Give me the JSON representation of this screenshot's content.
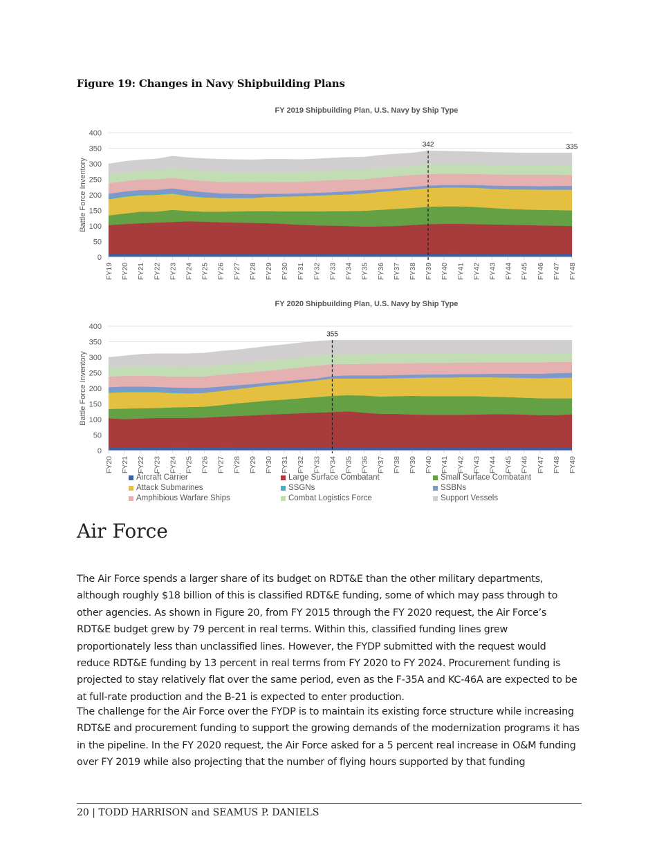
{
  "figure_title": "Figure 19: Changes in Navy Shipbuilding Plans",
  "legend": [
    {
      "name": "Aircraft Carrier",
      "color": "#3f5fa0"
    },
    {
      "name": "Large Surface Combatant",
      "color": "#a83b3b"
    },
    {
      "name": "Small Surface Combatant",
      "color": "#64a044"
    },
    {
      "name": "Attack Submarines",
      "color": "#e5c040"
    },
    {
      "name": "SSGNs",
      "color": "#4bacc6"
    },
    {
      "name": "SSBNs",
      "color": "#7f98cc"
    },
    {
      "name": "Amphibious Warfare Ships",
      "color": "#e4b0b0"
    },
    {
      "name": "Combat Logistics Force",
      "color": "#c2ddb4"
    },
    {
      "name": "Support Vessels",
      "color": "#d0cece"
    }
  ],
  "chart_data": [
    {
      "type": "area",
      "stacked": true,
      "title": "FY 2019 Shipbuilding Plan, U.S. Navy by Ship Type",
      "ylabel": "Battle Force Inventory",
      "ylim": [
        0,
        400
      ],
      "yticks": [
        0,
        50,
        100,
        150,
        200,
        250,
        300,
        350,
        400
      ],
      "grid": true,
      "categories": [
        "FY19",
        "FY20",
        "FY21",
        "FY22",
        "FY23",
        "FY24",
        "FY25",
        "FY26",
        "FY27",
        "FY28",
        "FY29",
        "FY30",
        "FY31",
        "FY32",
        "FY33",
        "FY34",
        "FY35",
        "FY36",
        "FY37",
        "FY38",
        "FY39",
        "FY40",
        "FY41",
        "FY42",
        "FY43",
        "FY44",
        "FY45",
        "FY46",
        "FY47",
        "FY48"
      ],
      "series": [
        {
          "name": "Aircraft Carrier",
          "values": [
            11,
            11,
            11,
            11,
            11,
            11,
            11,
            11,
            11,
            11,
            11,
            11,
            11,
            11,
            11,
            11,
            11,
            11,
            11,
            11,
            11,
            11,
            10,
            10,
            10,
            10,
            10,
            10,
            10,
            10
          ]
        },
        {
          "name": "Large Surface Combatant",
          "values": [
            92,
            95,
            98,
            100,
            102,
            104,
            103,
            101,
            100,
            99,
            98,
            96,
            93,
            91,
            90,
            89,
            87,
            88,
            89,
            92,
            95,
            96,
            97,
            96,
            95,
            94,
            93,
            92,
            91,
            90
          ]
        },
        {
          "name": "Small Surface Combatant",
          "values": [
            31,
            34,
            37,
            35,
            39,
            33,
            32,
            34,
            36,
            38,
            39,
            40,
            43,
            45,
            47,
            48,
            51,
            53,
            55,
            55,
            56,
            56,
            56,
            55,
            53,
            51,
            50,
            50,
            50,
            50
          ]
        },
        {
          "name": "Attack Submarines",
          "values": [
            52,
            54,
            53,
            54,
            52,
            48,
            46,
            44,
            43,
            42,
            46,
            48,
            49,
            51,
            52,
            54,
            56,
            58,
            59,
            60,
            60,
            61,
            61,
            62,
            62,
            63,
            65,
            65,
            66,
            67
          ]
        },
        {
          "name": "SSGNs",
          "values": [
            4,
            4,
            4,
            4,
            3,
            3,
            3,
            0,
            0,
            0,
            0,
            0,
            0,
            0,
            0,
            0,
            0,
            0,
            0,
            0,
            0,
            0,
            0,
            0,
            0,
            0,
            0,
            0,
            0,
            0
          ]
        },
        {
          "name": "SSBNs",
          "values": [
            14,
            13,
            13,
            12,
            14,
            15,
            14,
            15,
            14,
            13,
            10,
            9,
            9,
            9,
            9,
            10,
            10,
            8,
            8,
            8,
            8,
            8,
            8,
            9,
            10,
            11,
            11,
            11,
            12,
            12
          ]
        },
        {
          "name": "Amphibious Warfare Ships",
          "values": [
            34,
            33,
            34,
            34,
            34,
            35,
            36,
            37,
            37,
            38,
            37,
            38,
            37,
            38,
            39,
            37,
            35,
            38,
            38,
            38,
            37,
            36,
            36,
            35,
            36,
            36,
            36,
            37,
            36,
            35
          ]
        },
        {
          "name": "Combat Logistics Force",
          "values": [
            29,
            28,
            28,
            30,
            30,
            32,
            33,
            33,
            32,
            31,
            32,
            31,
            32,
            31,
            31,
            31,
            32,
            30,
            29,
            29,
            31,
            32,
            32,
            31,
            30,
            31,
            31,
            31,
            31,
            32
          ]
        },
        {
          "name": "Support Vessels",
          "values": [
            33,
            36,
            35,
            36,
            40,
            39,
            39,
            40,
            41,
            41,
            42,
            42,
            40,
            40,
            40,
            41,
            40,
            42,
            43,
            42,
            44,
            41,
            40,
            41,
            41,
            40,
            39,
            39,
            39,
            39
          ]
        }
      ],
      "annotations": [
        {
          "x": "FY39",
          "label": "342",
          "dashed_line": true
        },
        {
          "x": "FY48",
          "label": "335",
          "dashed_line": false
        }
      ]
    },
    {
      "type": "area",
      "stacked": true,
      "title": "FY 2020 Shipbuilding Plan, U.S. Navy by Ship Type",
      "ylabel": "Battle Force Inventory",
      "ylim": [
        0,
        400
      ],
      "yticks": [
        0,
        50,
        100,
        150,
        200,
        250,
        300,
        350,
        400
      ],
      "grid": true,
      "categories": [
        "FY20",
        "FY21",
        "FY22",
        "FY23",
        "FY24",
        "FY25",
        "FY26",
        "FY27",
        "FY28",
        "FY29",
        "FY30",
        "FY31",
        "FY32",
        "FY33",
        "FY34",
        "FY35",
        "FY36",
        "FY37",
        "FY38",
        "FY39",
        "FY40",
        "FY41",
        "FY42",
        "FY43",
        "FY44",
        "FY45",
        "FY46",
        "FY47",
        "FY48",
        "FY49"
      ],
      "series": [
        {
          "name": "Aircraft Carrier",
          "values": [
            11,
            11,
            11,
            11,
            11,
            10,
            10,
            10,
            9,
            9,
            9,
            9,
            9,
            9,
            9,
            9,
            9,
            9,
            9,
            9,
            9,
            9,
            9,
            9,
            9,
            9,
            9,
            9,
            9,
            9
          ]
        },
        {
          "name": "Large Surface Combatant",
          "values": [
            93,
            90,
            92,
            94,
            94,
            95,
            96,
            99,
            102,
            104,
            107,
            109,
            111,
            113,
            115,
            117,
            113,
            109,
            109,
            107,
            106,
            106,
            106,
            107,
            108,
            108,
            107,
            105,
            105,
            108
          ]
        },
        {
          "name": "Small Surface Combatant",
          "values": [
            30,
            34,
            33,
            32,
            34,
            35,
            35,
            37,
            41,
            43,
            45,
            46,
            48,
            50,
            52,
            52,
            55,
            56,
            57,
            60,
            60,
            60,
            60,
            59,
            56,
            55,
            54,
            54,
            54,
            51
          ]
        },
        {
          "name": "Attack Submarines",
          "values": [
            52,
            53,
            52,
            51,
            46,
            44,
            45,
            46,
            46,
            48,
            49,
            51,
            52,
            54,
            56,
            54,
            55,
            58,
            58,
            58,
            60,
            60,
            61,
            61,
            63,
            63,
            64,
            65,
            66,
            67
          ]
        },
        {
          "name": "SSGNs",
          "values": [
            4,
            4,
            4,
            3,
            3,
            0,
            0,
            0,
            0,
            0,
            0,
            0,
            0,
            0,
            0,
            0,
            0,
            0,
            0,
            0,
            0,
            0,
            0,
            0,
            0,
            0,
            0,
            0,
            0,
            0
          ]
        },
        {
          "name": "SSBNs",
          "values": [
            14,
            14,
            14,
            14,
            15,
            18,
            16,
            14,
            12,
            10,
            9,
            8,
            8,
            6,
            8,
            10,
            10,
            10,
            10,
            10,
            10,
            10,
            10,
            10,
            11,
            12,
            13,
            14,
            15,
            15
          ]
        },
        {
          "name": "Amphibious Warfare Ships",
          "values": [
            34,
            34,
            34,
            35,
            35,
            36,
            36,
            38,
            38,
            38,
            38,
            39,
            39,
            41,
            38,
            36,
            37,
            38,
            37,
            37,
            37,
            37,
            37,
            37,
            37,
            37,
            37,
            37,
            36,
            35
          ]
        },
        {
          "name": "Combat Logistics Force",
          "values": [
            29,
            30,
            31,
            32,
            32,
            32,
            33,
            31,
            31,
            31,
            31,
            32,
            32,
            32,
            32,
            32,
            31,
            31,
            32,
            31,
            31,
            31,
            30,
            30,
            29,
            29,
            29,
            29,
            29,
            29
          ]
        },
        {
          "name": "Support Vessels",
          "values": [
            33,
            35,
            39,
            40,
            42,
            42,
            43,
            45,
            45,
            47,
            48,
            47,
            48,
            47,
            45,
            45,
            45,
            44,
            43,
            43,
            42,
            42,
            42,
            42,
            42,
            42,
            42,
            42,
            41,
            41
          ]
        }
      ],
      "annotations": [
        {
          "x": "FY34",
          "label": "355",
          "dashed_line": true
        }
      ]
    }
  ],
  "section_heading": "Air Force",
  "paragraphs": [
    "The Air Force spends a larger share of its budget on RDT&E than the other military departments, although roughly $18 billion of this is classified RDT&E funding, some of which may pass through to other agencies. As shown in Figure 20, from FY 2015 through the FY 2020 request, the Air Force’s RDT&E budget grew by 79 percent in real terms. Within this, classified funding lines grew proportionately less than unclassified lines. However, the FYDP submitted with the request would reduce RDT&E funding by 13 percent in real terms from FY 2020 to FY 2024. Procurement funding is projected to stay relatively flat over the same period, even as the F-35A and KC-46A are expected to be at full-rate production and the B-21 is expected to enter production.",
    "The challenge for the Air Force over the FYDP is to maintain its existing force structure while increasing RDT&E and procurement funding to support the growing demands of the modernization programs it has in the pipeline. In the FY 2020 request, the Air Force asked for a 5 percent real increase in O&M funding over FY 2019 while also projecting that the number of flying hours supported by that funding"
  ],
  "footer": "20 | TODD HARRISON and SEAMUS P. DANIELS"
}
